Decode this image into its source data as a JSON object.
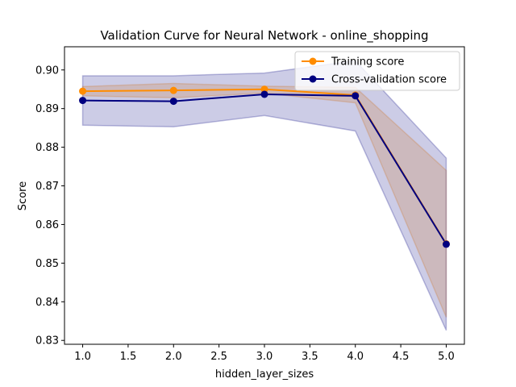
{
  "chart_data": {
    "type": "line",
    "title": "Validation Curve for Neural Network - online_shopping",
    "xlabel": "hidden_layer_sizes",
    "ylabel": "Score",
    "xlim": [
      0.8,
      5.2
    ],
    "ylim": [
      0.829,
      0.906
    ],
    "xticks": [
      1.0,
      1.5,
      2.0,
      2.5,
      3.0,
      3.5,
      4.0,
      4.5,
      5.0
    ],
    "xtick_labels": [
      "1.0",
      "1.5",
      "2.0",
      "2.5",
      "3.0",
      "3.5",
      "4.0",
      "4.5",
      "5.0"
    ],
    "yticks": [
      0.83,
      0.84,
      0.85,
      0.86,
      0.87,
      0.88,
      0.89,
      0.9
    ],
    "ytick_labels": [
      "0.83",
      "0.84",
      "0.85",
      "0.86",
      "0.87",
      "0.88",
      "0.89",
      "0.90"
    ],
    "grid": false,
    "legend_position": "top-right",
    "x": [
      1,
      2,
      3,
      4,
      5
    ],
    "series": [
      {
        "name": "Training score",
        "color": "#ff8c00",
        "values": [
          0.8945,
          0.8947,
          0.895,
          0.8935,
          0.855
        ],
        "band_lower": [
          0.8933,
          0.8928,
          0.894,
          0.8915,
          0.836
        ],
        "band_upper": [
          0.8957,
          0.8965,
          0.8958,
          0.8955,
          0.874
        ]
      },
      {
        "name": "Cross-validation score",
        "color": "#000080",
        "values": [
          0.8921,
          0.8919,
          0.8937,
          0.8933,
          0.8549
        ],
        "band_lower": [
          0.8857,
          0.8853,
          0.8882,
          0.8842,
          0.8326
        ],
        "band_upper": [
          0.8985,
          0.8985,
          0.8992,
          0.9024,
          0.8772
        ]
      }
    ]
  }
}
